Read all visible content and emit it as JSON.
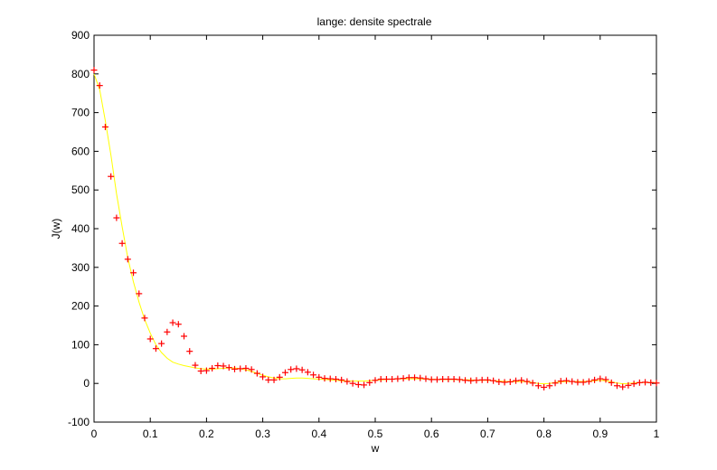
{
  "chart_data": {
    "type": "scatter",
    "title": "lange:     densite spectrale",
    "xlabel": "w",
    "ylabel": "J(w)",
    "xlim": [
      0,
      1
    ],
    "ylim": [
      -100,
      900
    ],
    "xticks": [
      0,
      0.1,
      0.2,
      0.3,
      0.4,
      0.5,
      0.6,
      0.7,
      0.8,
      0.9,
      1
    ],
    "xtick_labels": [
      "0",
      "0.1",
      "0.2",
      "0.3",
      "0.4",
      "0.5",
      "0.6",
      "0.7",
      "0.8",
      "0.9",
      "1"
    ],
    "yticks": [
      -100,
      0,
      100,
      200,
      300,
      400,
      500,
      600,
      700,
      800,
      900
    ],
    "ytick_labels": [
      "-100",
      "0",
      "100",
      "200",
      "300",
      "400",
      "500",
      "600",
      "700",
      "800",
      "900"
    ],
    "grid": false,
    "series": [
      {
        "kind": "markers",
        "marker": "+",
        "color": "#ff0000",
        "x": [
          0,
          0.01,
          0.02,
          0.03,
          0.04,
          0.05,
          0.06,
          0.07,
          0.08,
          0.09,
          0.1,
          0.11,
          0.12,
          0.13,
          0.14,
          0.15,
          0.16,
          0.17,
          0.18,
          0.19,
          0.2,
          0.21,
          0.22,
          0.23,
          0.24,
          0.25,
          0.26,
          0.27,
          0.28,
          0.29,
          0.3,
          0.31,
          0.32,
          0.33,
          0.34,
          0.35,
          0.36,
          0.37,
          0.38,
          0.39,
          0.4,
          0.41,
          0.42,
          0.43,
          0.44,
          0.45,
          0.46,
          0.47,
          0.48,
          0.49,
          0.5,
          0.51,
          0.52,
          0.53,
          0.54,
          0.55,
          0.56,
          0.57,
          0.58,
          0.59,
          0.6,
          0.61,
          0.62,
          0.63,
          0.64,
          0.65,
          0.66,
          0.67,
          0.68,
          0.69,
          0.7,
          0.71,
          0.72,
          0.73,
          0.74,
          0.75,
          0.76,
          0.77,
          0.78,
          0.79,
          0.8,
          0.81,
          0.82,
          0.83,
          0.84,
          0.85,
          0.86,
          0.87,
          0.88,
          0.89,
          0.9,
          0.91,
          0.92,
          0.93,
          0.94,
          0.95,
          0.96,
          0.97,
          0.98,
          0.99,
          1
        ],
        "y": [
          810,
          770,
          663,
          535,
          428,
          362,
          321,
          286,
          232,
          169,
          115,
          90,
          103,
          133,
          157,
          153,
          122,
          83,
          47,
          32,
          33,
          39,
          46,
          45,
          41,
          37,
          38,
          39,
          36,
          26,
          17,
          9,
          9,
          16,
          28,
          36,
          38,
          35,
          29,
          22,
          16,
          13,
          12,
          11,
          9,
          5,
          0,
          -3,
          -4,
          2,
          8,
          11,
          11,
          11,
          12,
          13,
          15,
          15,
          14,
          12,
          10,
          10,
          11,
          11,
          11,
          10,
          8,
          7,
          8,
          9,
          9,
          7,
          4,
          3,
          4,
          7,
          8,
          5,
          1,
          -6,
          -10,
          -6,
          1,
          6,
          7,
          5,
          3,
          3,
          5,
          9,
          12,
          10,
          2,
          -6,
          -9,
          -5,
          -1,
          2,
          3,
          2,
          1
        ]
      },
      {
        "kind": "line",
        "color": "#ffff00",
        "x": [
          0,
          0.01,
          0.02,
          0.03,
          0.04,
          0.05,
          0.06,
          0.07,
          0.08,
          0.09,
          0.1,
          0.11,
          0.12,
          0.13,
          0.14,
          0.15,
          0.16,
          0.17,
          0.18,
          0.19,
          0.2,
          0.21,
          0.22,
          0.23,
          0.24,
          0.25,
          0.26,
          0.27,
          0.28,
          0.29,
          0.3,
          0.31,
          0.32,
          0.33,
          0.34,
          0.35,
          0.36,
          0.37,
          0.38,
          0.39,
          0.4,
          0.41,
          0.42,
          0.43,
          0.44,
          0.45,
          0.46,
          0.47,
          0.48,
          0.49,
          0.5,
          0.51,
          0.52,
          0.53,
          0.54,
          0.55,
          0.56,
          0.57,
          0.58,
          0.59,
          0.6,
          0.61,
          0.62,
          0.63,
          0.64,
          0.65,
          0.66,
          0.67,
          0.68,
          0.69,
          0.7,
          0.71,
          0.72,
          0.73,
          0.74,
          0.75,
          0.76,
          0.77,
          0.78,
          0.79,
          0.8,
          0.81,
          0.82,
          0.83,
          0.84,
          0.85,
          0.86,
          0.87,
          0.88,
          0.89,
          0.9,
          0.91,
          0.92,
          0.93,
          0.94,
          0.95,
          0.96,
          0.97,
          0.98,
          0.99,
          1
        ],
        "y": [
          800,
          760,
          680,
          590,
          490,
          405,
          325,
          263,
          210,
          165,
          130,
          100,
          80,
          65,
          55,
          50,
          46,
          43,
          40,
          38,
          37,
          37,
          38,
          39,
          40,
          40,
          38,
          35,
          31,
          26,
          21,
          17,
          14,
          12,
          12,
          13,
          14,
          14,
          13,
          12,
          11,
          10,
          9,
          8,
          7,
          6,
          6,
          6,
          6,
          7,
          8,
          9,
          10,
          11,
          12,
          12,
          12,
          12,
          12,
          11,
          11,
          10,
          10,
          10,
          10,
          9,
          9,
          9,
          8,
          8,
          8,
          7,
          6,
          5,
          5,
          5,
          5,
          4,
          2,
          0,
          -1,
          0,
          2,
          4,
          5,
          5,
          5,
          5,
          6,
          7,
          8,
          7,
          4,
          1,
          -1,
          0,
          1,
          2,
          2,
          2,
          2
        ]
      }
    ]
  }
}
